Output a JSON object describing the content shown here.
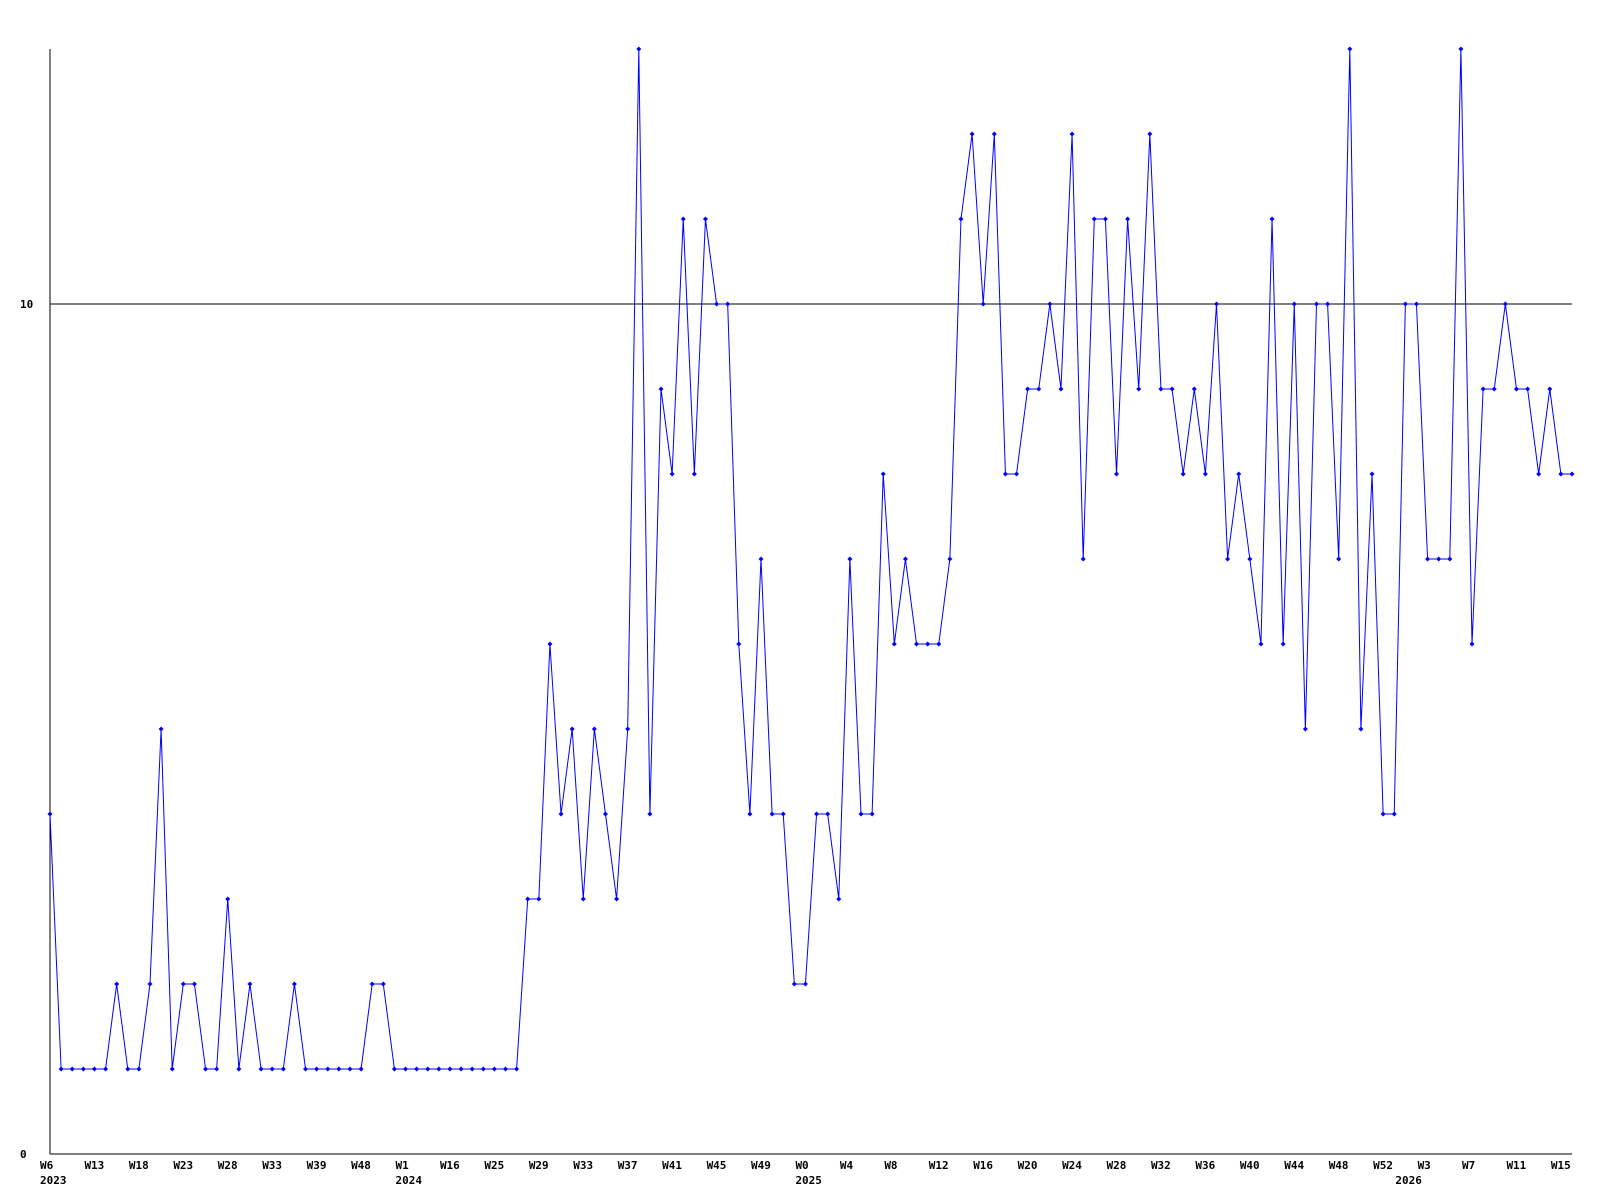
{
  "chart_data": {
    "type": "line",
    "categories": [
      "W6",
      null,
      null,
      null,
      "W13",
      null,
      null,
      null,
      "W18",
      null,
      null,
      null,
      "W23",
      null,
      null,
      null,
      "W28",
      null,
      null,
      null,
      "W33",
      null,
      null,
      null,
      "W39",
      null,
      null,
      null,
      "W48",
      null,
      null,
      null,
      "W1",
      null,
      null,
      null,
      "W16",
      null,
      null,
      null,
      "W25",
      null,
      null,
      null,
      "W29",
      null,
      null,
      null,
      "W33",
      null,
      null,
      null,
      "W37",
      null,
      null,
      null,
      "W41",
      null,
      null,
      null,
      "W45",
      null,
      null,
      null,
      "W49",
      null,
      null,
      null,
      "W0",
      null,
      null,
      null,
      "W4",
      null,
      null,
      null,
      "W8",
      null,
      null,
      null,
      "W12",
      null,
      null,
      null,
      "W16",
      null,
      null,
      null,
      "W20",
      null,
      null,
      null,
      "W24",
      null,
      null,
      null,
      "W28",
      null,
      null,
      null,
      "W32",
      null,
      null,
      null,
      "W36",
      null,
      null,
      null,
      "W40",
      null,
      null,
      null,
      "W44",
      null,
      null,
      null,
      "W48",
      null,
      null,
      null,
      "W52",
      null,
      null,
      null,
      "W3",
      null,
      null,
      null,
      "W7",
      null,
      null,
      null,
      "W11",
      null,
      null,
      null,
      "W15",
      null
    ],
    "category_years": [
      "2023",
      null,
      null,
      null,
      null,
      null,
      null,
      null,
      null,
      null,
      null,
      null,
      null,
      null,
      null,
      null,
      null,
      null,
      null,
      null,
      null,
      null,
      null,
      null,
      null,
      null,
      null,
      null,
      null,
      null,
      null,
      null,
      "2024",
      null,
      null,
      null,
      null,
      null,
      null,
      null,
      null,
      null,
      null,
      null,
      null,
      null,
      null,
      null,
      null,
      null,
      null,
      null,
      null,
      null,
      null,
      null,
      null,
      null,
      null,
      null,
      null,
      null,
      null,
      null,
      null,
      null,
      null,
      null,
      "2025",
      null,
      null,
      null,
      null,
      null,
      null,
      null,
      null,
      null,
      null,
      null,
      null,
      null,
      null,
      null,
      null,
      null,
      null,
      null,
      null,
      null,
      null,
      null,
      null,
      null,
      null,
      null,
      null,
      null,
      null,
      null,
      null,
      null,
      null,
      null,
      null,
      null,
      null,
      null,
      null,
      null,
      null,
      null,
      null,
      null,
      null,
      null,
      null,
      null,
      null,
      null,
      null,
      null,
      "2026",
      null,
      null,
      null,
      null,
      null,
      null,
      null,
      null,
      null,
      null,
      null,
      null,
      null,
      null,
      null,
      null,
      null
    ],
    "values": [
      4,
      1,
      1,
      1,
      1,
      1,
      2,
      1,
      1,
      2,
      5,
      1,
      2,
      2,
      1,
      1,
      3,
      1,
      2,
      1,
      1,
      1,
      2,
      1,
      1,
      1,
      1,
      1,
      1,
      2,
      2,
      1,
      1,
      1,
      1,
      1,
      1,
      1,
      1,
      1,
      1,
      1,
      1,
      3,
      3,
      6,
      4,
      5,
      3,
      5,
      4,
      3,
      5,
      13,
      4,
      9,
      8,
      11,
      8,
      11,
      10,
      10,
      6,
      4,
      7,
      4,
      4,
      2,
      2,
      4,
      4,
      3,
      7,
      4,
      4,
      8,
      6,
      7,
      6,
      6,
      6,
      7,
      11,
      12,
      10,
      12,
      8,
      8,
      9,
      9,
      10,
      9,
      12,
      7,
      11,
      11,
      8,
      11,
      9,
      12,
      9,
      9,
      8,
      9,
      8,
      10,
      7,
      8,
      7,
      6,
      11,
      6,
      10,
      5,
      10,
      10,
      7,
      13,
      5,
      8,
      4,
      4,
      10,
      10,
      7,
      7,
      7,
      13,
      6,
      9,
      9,
      10,
      9,
      9,
      8,
      9,
      8,
      8
    ],
    "color": "#0000ff",
    "ylim": [
      0,
      13
    ],
    "yticks": [
      0,
      10
    ],
    "grid": true
  }
}
